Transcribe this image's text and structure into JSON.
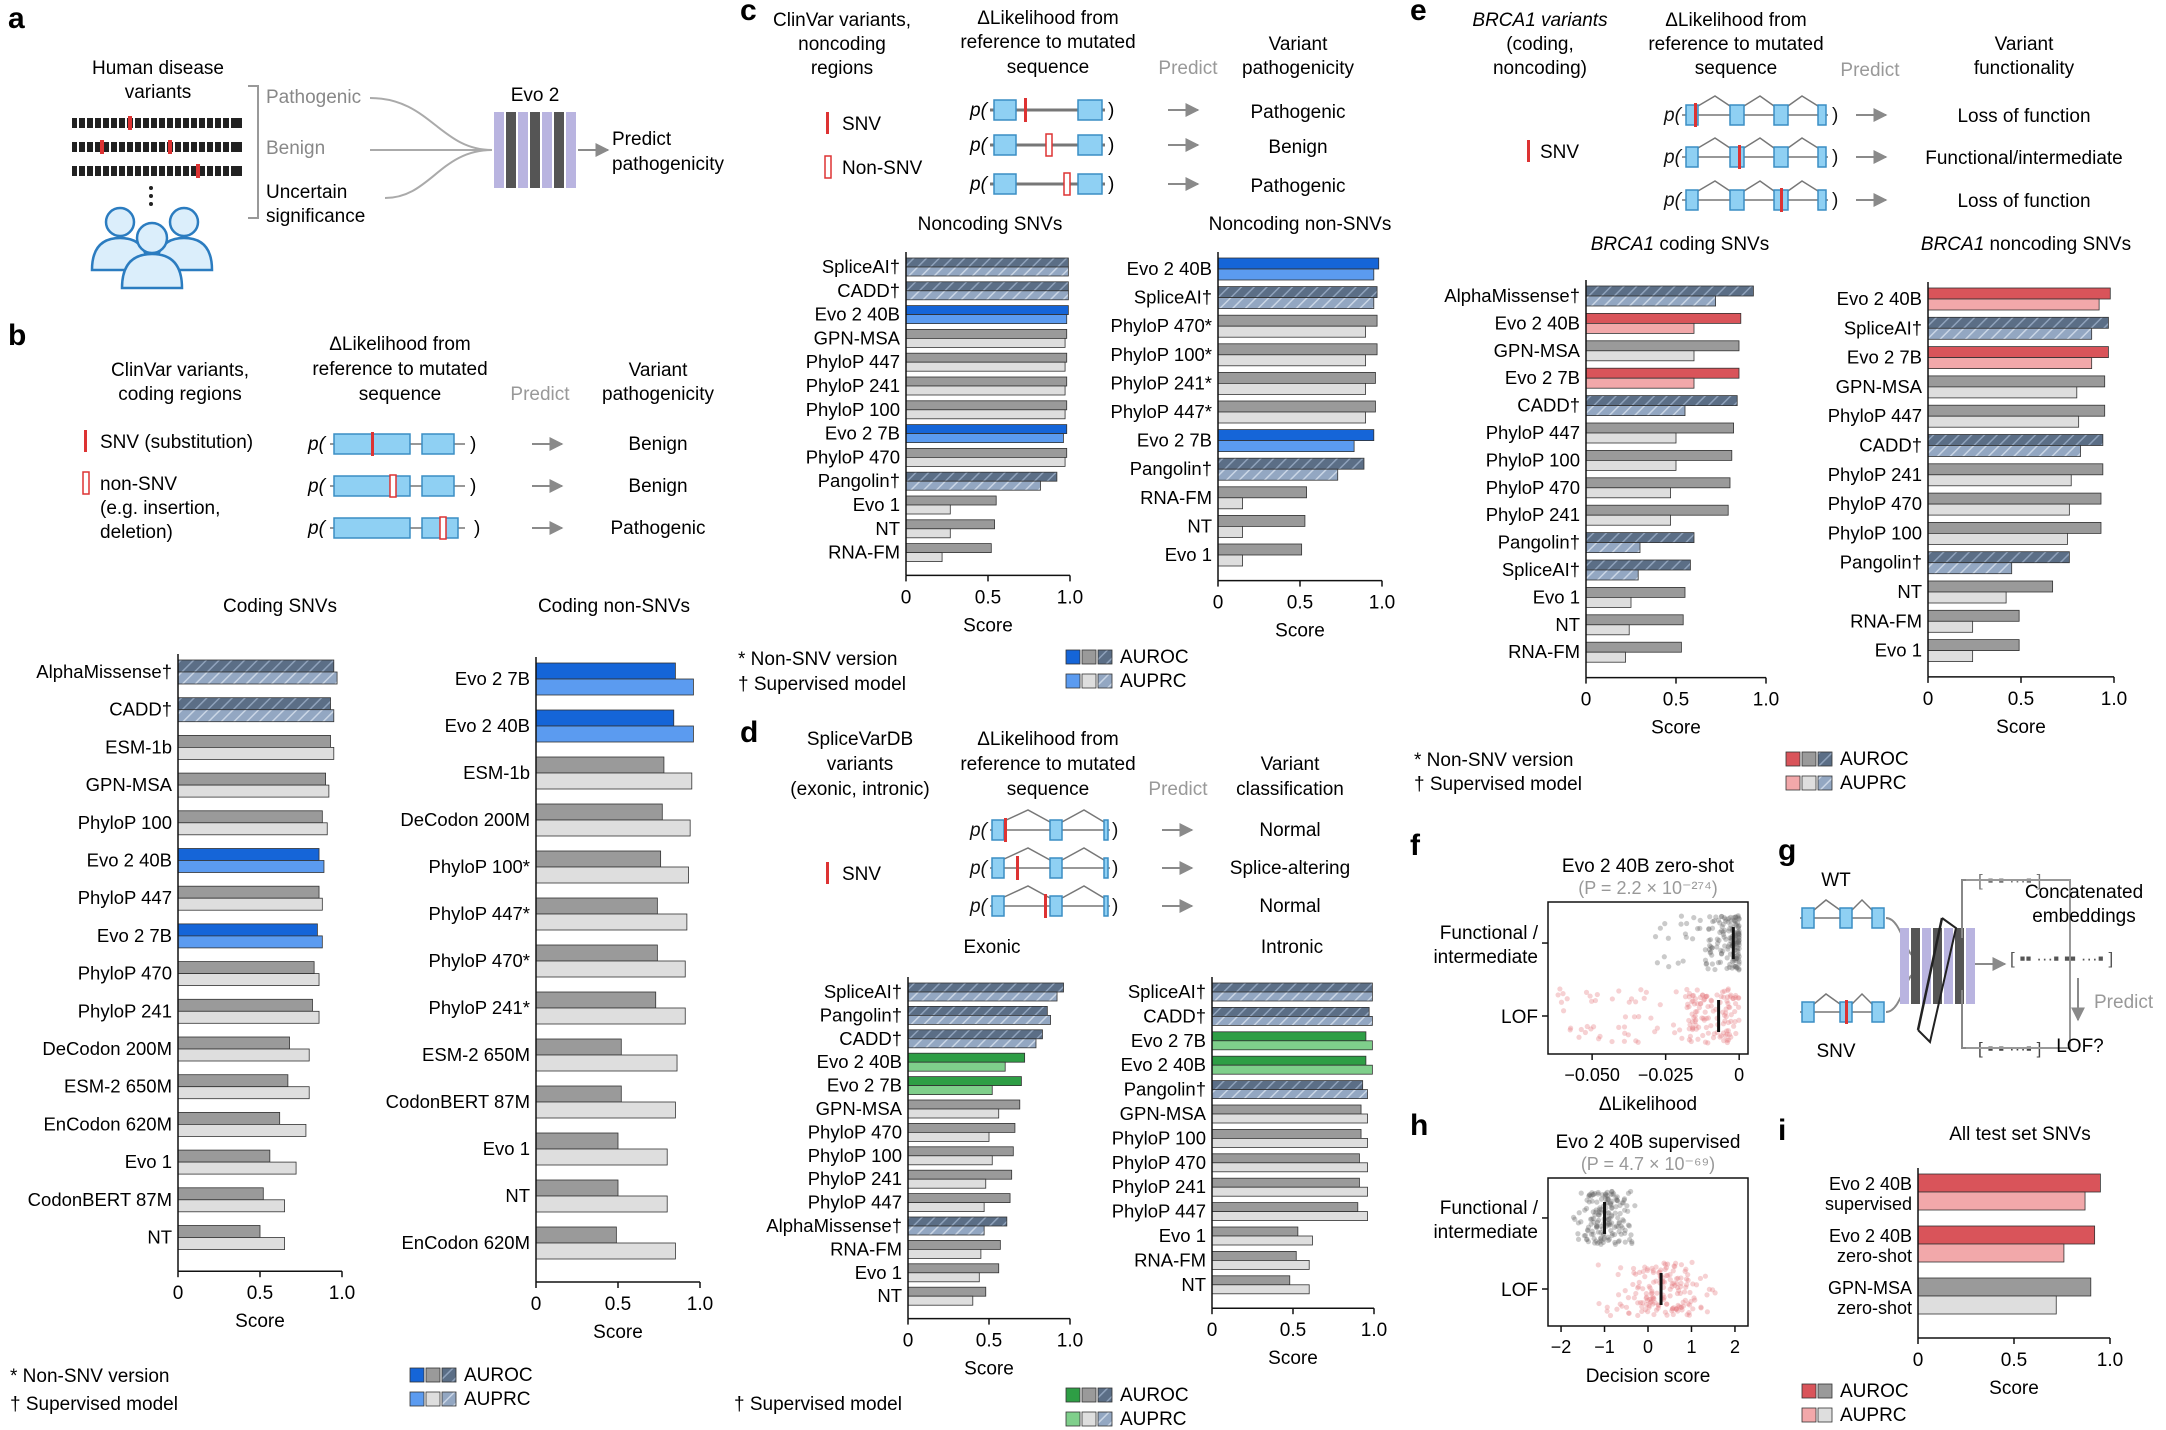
{
  "panel_letters": [
    "a",
    "b",
    "c",
    "d",
    "e",
    "f",
    "g",
    "h",
    "i"
  ],
  "colors": {
    "blue_auroc": "#1565d8",
    "blue_auprc": "#5b9bf0",
    "green_auroc": "#2e9e45",
    "green_auprc": "#7fcf8b",
    "red_auroc": "#d9545a",
    "red_auprc": "#f2a8aa",
    "gray_auroc": "#9a9a9a",
    "gray_auprc": "#dedede",
    "hatch": "#5b6e86",
    "hatch_light": "#93a7c2"
  },
  "panel_a": {
    "title_line1": "Human disease",
    "title_line2": "variants",
    "labels": [
      "Pathogenic",
      "Benign",
      "Uncertain",
      "significance"
    ],
    "model": "Evo 2",
    "predict_line1": "Predict",
    "predict_line2": "pathogenicity"
  },
  "panel_b": {
    "col1_line1": "ClinVar variants,",
    "col1_line2": "coding regions",
    "col2_line1": "ΔLikelihood from",
    "col2_line2": "reference to mutated",
    "col2_line3": "sequence",
    "predict": "Predict",
    "col3_line1": "Variant",
    "col3_line2": "pathogenicity",
    "legend": [
      "SNV (substitution)",
      "non-SNV",
      "(e.g. insertion,",
      "deletion)"
    ],
    "p_label": "p(",
    "p_close": ")",
    "outcomes": [
      "Benign",
      "Benign",
      "Pathogenic"
    ],
    "footnote_star": "* Non-SNV version",
    "footnote_dagger": "† Supervised model",
    "legend_auroc": "AUROC",
    "legend_auprc": "AUPRC"
  },
  "panel_c": {
    "col1_line1": "ClinVar variants,",
    "col1_line2": "noncoding",
    "col1_line3": "regions",
    "col2_line1": "ΔLikelihood from",
    "col2_line2": "reference to mutated",
    "col2_line3": "sequence",
    "predict": "Predict",
    "col3_line1": "Variant",
    "col3_line2": "pathogenicity",
    "legend": [
      "SNV",
      "Non-SNV"
    ],
    "outcomes": [
      "Pathogenic",
      "Benign",
      "Pathogenic"
    ],
    "footnote_star": "* Non-SNV version",
    "footnote_dagger": "† Supervised model",
    "legend_auroc": "AUROC",
    "legend_auprc": "AUPRC"
  },
  "panel_d": {
    "col1_line1": "SpliceVarDB",
    "col1_line2": "variants",
    "col1_line3": "(exonic, intronic)",
    "col2_line1": "ΔLikelihood from",
    "col2_line2": "reference to mutated",
    "col2_line3": "sequence",
    "predict": "Predict",
    "col3_line1": "Variant",
    "col3_line2": "classification",
    "legend": [
      "SNV"
    ],
    "outcomes": [
      "Normal",
      "Splice-altering",
      "Normal"
    ],
    "footnote_dagger": "† Supervised model",
    "legend_auroc": "AUROC",
    "legend_auprc": "AUPRC"
  },
  "panel_e": {
    "col1_line1": "BRCA1 variants",
    "col1_line2": "(coding,",
    "col1_line3": "noncoding)",
    "col2_line1": "ΔLikelihood from",
    "col2_line2": "reference to mutated",
    "col2_line3": "sequence",
    "predict": "Predict",
    "col3_line1": "Variant",
    "col3_line2": "functionality",
    "legend": [
      "SNV"
    ],
    "outcomes": [
      "Loss of function",
      "Functional/intermediate",
      "Loss of function"
    ],
    "footnote_star": "* Non-SNV version",
    "footnote_dagger": "† Supervised model",
    "legend_auroc": "AUROC",
    "legend_auprc": "AUPRC"
  },
  "panel_g": {
    "wt": "WT",
    "snv": "SNV",
    "concat_line1": "Concatenated",
    "concat_line2": "embeddings",
    "predict": "Predict",
    "lof": "LOF?"
  },
  "chart_data": [
    {
      "id": "b1",
      "type": "bar",
      "title": "Coding SNVs",
      "xlabel": "Score",
      "xlim": [
        0,
        1
      ],
      "ticks": [
        "0",
        "0.5",
        "1.0"
      ],
      "categories": [
        "AlphaMissense†",
        "CADD†",
        "ESM-1b",
        "GPN-MSA",
        "PhyloP 100",
        "Evo 2 40B",
        "PhyloP 447",
        "Evo 2 7B",
        "PhyloP 470",
        "PhyloP 241",
        "DeCodon 200M",
        "ESM-2 650M",
        "EnCodon 620M",
        "Evo 1",
        "CodonBERT 87M",
        "NT"
      ],
      "styles": [
        "hatch",
        "hatch",
        "gray",
        "gray",
        "gray",
        "color",
        "gray",
        "color",
        "gray",
        "gray",
        "gray",
        "gray",
        "gray",
        "gray",
        "gray",
        "gray"
      ],
      "series": [
        {
          "name": "AUROC",
          "values": [
            0.95,
            0.93,
            0.93,
            0.9,
            0.88,
            0.86,
            0.86,
            0.85,
            0.83,
            0.82,
            0.68,
            0.67,
            0.62,
            0.56,
            0.52,
            0.5
          ]
        },
        {
          "name": "AUPRC",
          "values": [
            0.97,
            0.95,
            0.95,
            0.92,
            0.91,
            0.89,
            0.88,
            0.88,
            0.86,
            0.86,
            0.8,
            0.8,
            0.78,
            0.72,
            0.65,
            0.65
          ]
        }
      ]
    },
    {
      "id": "b2",
      "type": "bar",
      "title": "Coding non-SNVs",
      "xlabel": "Score",
      "xlim": [
        0,
        1
      ],
      "ticks": [
        "0",
        "0.5",
        "1.0"
      ],
      "categories": [
        "Evo 2 7B",
        "Evo 2 40B",
        "ESM-1b",
        "DeCodon 200M",
        "PhyloP 100*",
        "PhyloP 447*",
        "PhyloP 470*",
        "PhyloP 241*",
        "ESM-2 650M",
        "CodonBERT 87M",
        "Evo 1",
        "NT",
        "EnCodon 620M"
      ],
      "styles": [
        "color",
        "color",
        "gray",
        "gray",
        "gray",
        "gray",
        "gray",
        "gray",
        "gray",
        "gray",
        "gray",
        "gray",
        "gray"
      ],
      "series": [
        {
          "name": "AUROC",
          "values": [
            0.85,
            0.84,
            0.78,
            0.77,
            0.76,
            0.74,
            0.74,
            0.73,
            0.52,
            0.52,
            0.5,
            0.5,
            0.49
          ]
        },
        {
          "name": "AUPRC",
          "values": [
            0.96,
            0.96,
            0.95,
            0.94,
            0.93,
            0.92,
            0.91,
            0.91,
            0.86,
            0.85,
            0.8,
            0.8,
            0.85
          ]
        }
      ]
    },
    {
      "id": "c1",
      "type": "bar",
      "title": "Noncoding SNVs",
      "xlabel": "Score",
      "xlim": [
        0,
        1
      ],
      "ticks": [
        "0",
        "0.5",
        "1.0"
      ],
      "categories": [
        "SpliceAI†",
        "CADD†",
        "Evo 2 40B",
        "GPN-MSA",
        "PhyloP 447",
        "PhyloP 241",
        "PhyloP 100",
        "Evo 2 7B",
        "PhyloP 470",
        "Pangolin†",
        "Evo 1",
        "NT",
        "RNA-FM"
      ],
      "styles": [
        "hatch",
        "hatch",
        "color",
        "gray",
        "gray",
        "gray",
        "gray",
        "color",
        "gray",
        "hatch",
        "gray",
        "gray",
        "gray"
      ],
      "series": [
        {
          "name": "AUROC",
          "values": [
            0.99,
            0.99,
            0.99,
            0.98,
            0.98,
            0.98,
            0.98,
            0.98,
            0.98,
            0.92,
            0.55,
            0.54,
            0.52
          ]
        },
        {
          "name": "AUPRC",
          "values": [
            0.99,
            0.99,
            0.98,
            0.97,
            0.97,
            0.97,
            0.97,
            0.96,
            0.97,
            0.82,
            0.27,
            0.27,
            0.22
          ]
        }
      ]
    },
    {
      "id": "c2",
      "type": "bar",
      "title": "Noncoding non-SNVs",
      "xlabel": "Score",
      "xlim": [
        0,
        1
      ],
      "ticks": [
        "0",
        "0.5",
        "1.0"
      ],
      "categories": [
        "Evo 2 40B",
        "SpliceAI†",
        "PhyloP 470*",
        "PhyloP 100*",
        "PhyloP 241*",
        "PhyloP 447*",
        "Evo 2 7B",
        "Pangolin†",
        "RNA-FM",
        "NT",
        "Evo 1"
      ],
      "styles": [
        "color",
        "hatch",
        "gray",
        "gray",
        "gray",
        "gray",
        "color",
        "hatch",
        "gray",
        "gray",
        "gray"
      ],
      "series": [
        {
          "name": "AUROC",
          "values": [
            0.98,
            0.97,
            0.97,
            0.97,
            0.96,
            0.96,
            0.95,
            0.89,
            0.54,
            0.53,
            0.51
          ]
        },
        {
          "name": "AUPRC",
          "values": [
            0.95,
            0.95,
            0.9,
            0.9,
            0.9,
            0.9,
            0.83,
            0.73,
            0.15,
            0.15,
            0.15
          ]
        }
      ]
    },
    {
      "id": "d1",
      "type": "bar",
      "title": "Exonic",
      "xlabel": "Score",
      "xlim": [
        0,
        1
      ],
      "ticks": [
        "0",
        "0.5",
        "1.0"
      ],
      "categories": [
        "SpliceAI†",
        "Pangolin†",
        "CADD†",
        "Evo 2 40B",
        "Evo 2 7B",
        "GPN-MSA",
        "PhyloP 470",
        "PhyloP 100",
        "PhyloP 241",
        "PhyloP 447",
        "AlphaMissense†",
        "RNA-FM",
        "Evo 1",
        "NT"
      ],
      "styles": [
        "hatch",
        "hatch",
        "hatch",
        "color",
        "color",
        "gray",
        "gray",
        "gray",
        "gray",
        "gray",
        "hatch",
        "gray",
        "gray",
        "gray"
      ],
      "series": [
        {
          "name": "AUROC",
          "values": [
            0.96,
            0.86,
            0.83,
            0.72,
            0.7,
            0.69,
            0.66,
            0.65,
            0.64,
            0.63,
            0.61,
            0.57,
            0.56,
            0.48
          ],
          "visual": [
            0.96,
            0.86,
            0.83,
            0.72,
            0.7,
            0.69,
            0.66,
            0.65,
            0.64,
            0.63,
            0.61,
            0.57,
            0.56,
            0.48
          ]
        },
        {
          "name": "AUPRC",
          "values": [
            0.92,
            0.88,
            0.79,
            0.6,
            0.52,
            0.56,
            0.5,
            0.52,
            0.48,
            0.47,
            0.47,
            0.45,
            0.44,
            0.4
          ]
        }
      ]
    },
    {
      "id": "d2",
      "type": "bar",
      "title": "Intronic",
      "xlabel": "Score",
      "xlim": [
        0,
        1
      ],
      "ticks": [
        "0",
        "0.5",
        "1.0"
      ],
      "categories": [
        "SpliceAI†",
        "CADD†",
        "Evo 2 7B",
        "Evo 2 40B",
        "Pangolin†",
        "GPN-MSA",
        "PhyloP 100",
        "PhyloP 470",
        "PhyloP 241",
        "PhyloP 447",
        "Evo 1",
        "RNA-FM",
        "NT"
      ],
      "styles": [
        "hatch",
        "hatch",
        "color",
        "color",
        "hatch",
        "gray",
        "gray",
        "gray",
        "gray",
        "gray",
        "gray",
        "gray",
        "gray"
      ],
      "series": [
        {
          "name": "AUROC",
          "values": [
            0.99,
            0.97,
            0.95,
            0.95,
            0.93,
            0.92,
            0.92,
            0.91,
            0.91,
            0.9,
            0.53,
            0.52,
            0.48
          ],
          "visual": [
            0.99,
            0.97,
            0.95,
            0.95,
            0.93,
            0.92,
            0.92,
            0.91,
            0.91,
            0.9,
            0.53,
            0.52,
            0.48
          ]
        },
        {
          "name": "AUPRC",
          "values": [
            0.99,
            0.99,
            0.99,
            0.99,
            0.96,
            0.96,
            0.96,
            0.96,
            0.96,
            0.96,
            0.62,
            0.6,
            0.6
          ]
        }
      ]
    },
    {
      "id": "e1",
      "type": "bar",
      "title": "BRCA1 coding SNVs",
      "xlabel": "Score",
      "xlim": [
        0,
        1
      ],
      "ticks": [
        "0",
        "0.5",
        "1.0"
      ],
      "categories": [
        "AlphaMissense†",
        "Evo 2 40B",
        "GPN-MSA",
        "Evo 2 7B",
        "CADD†",
        "PhyloP 447",
        "PhyloP 100",
        "PhyloP 470",
        "PhyloP 241",
        "Pangolin†",
        "SpliceAI†",
        "Evo 1",
        "NT",
        "RNA-FM"
      ],
      "styles": [
        "hatch",
        "color",
        "gray",
        "color",
        "hatch",
        "gray",
        "gray",
        "gray",
        "gray",
        "hatch",
        "hatch",
        "gray",
        "gray",
        "gray"
      ],
      "series": [
        {
          "name": "AUROC",
          "values": [
            0.93,
            0.86,
            0.85,
            0.85,
            0.84,
            0.82,
            0.81,
            0.8,
            0.79,
            0.6,
            0.58,
            0.55,
            0.54,
            0.53
          ]
        },
        {
          "name": "AUPRC",
          "values": [
            0.72,
            0.6,
            0.6,
            0.6,
            0.55,
            0.5,
            0.5,
            0.47,
            0.47,
            0.3,
            0.29,
            0.25,
            0.24,
            0.22
          ]
        }
      ]
    },
    {
      "id": "e2",
      "type": "bar",
      "title": "BRCA1 noncoding SNVs",
      "xlabel": "Score",
      "xlim": [
        0,
        1
      ],
      "ticks": [
        "0",
        "0.5",
        "1.0"
      ],
      "categories": [
        "Evo 2 40B",
        "SpliceAI†",
        "Evo 2 7B",
        "GPN-MSA",
        "PhyloP 447",
        "CADD†",
        "PhyloP 241",
        "PhyloP 470",
        "PhyloP 100",
        "Pangolin†",
        "NT",
        "RNA-FM",
        "Evo 1"
      ],
      "styles": [
        "color",
        "hatch",
        "color",
        "gray",
        "gray",
        "hatch",
        "gray",
        "gray",
        "gray",
        "hatch",
        "gray",
        "gray",
        "gray"
      ],
      "series": [
        {
          "name": "AUROC",
          "values": [
            0.98,
            0.97,
            0.97,
            0.95,
            0.95,
            0.94,
            0.94,
            0.93,
            0.93,
            0.76,
            0.67,
            0.49,
            0.49
          ]
        },
        {
          "name": "AUPRC",
          "values": [
            0.92,
            0.88,
            0.88,
            0.8,
            0.81,
            0.82,
            0.77,
            0.76,
            0.75,
            0.45,
            0.42,
            0.24,
            0.24
          ]
        }
      ]
    },
    {
      "id": "f",
      "type": "scatter",
      "title": "Evo 2 40B zero-shot",
      "subtitle": "(P = 2.2 × 10⁻²⁷⁴)",
      "xlabel": "ΔLikelihood",
      "xlim": [
        -0.065,
        0.003
      ],
      "ticks": [
        "−0.050",
        "−0.025",
        "0"
      ],
      "tick_values": [
        -0.05,
        -0.025,
        0
      ],
      "groups": [
        {
          "name": "Functional / intermediate",
          "median": -0.002
        },
        {
          "name": "LOF",
          "median": -0.007
        }
      ]
    },
    {
      "id": "h",
      "type": "scatter",
      "title": "Evo 2 40B supervised",
      "subtitle": "(P = 4.7 × 10⁻⁶⁹)",
      "xlabel": "Decision score",
      "xlim": [
        -2.3,
        2.3
      ],
      "ticks": [
        "−2",
        "−1",
        "0",
        "1",
        "2"
      ],
      "tick_values": [
        -2,
        -1,
        0,
        1,
        2
      ],
      "groups": [
        {
          "name": "Functional / intermediate",
          "median": -1.0
        },
        {
          "name": "LOF",
          "median": 0.3
        }
      ]
    },
    {
      "id": "i",
      "type": "bar",
      "title": "All test set SNVs",
      "xlabel": "Score",
      "xlim": [
        0,
        1
      ],
      "ticks": [
        "0",
        "0.5",
        "1.0"
      ],
      "categories": [
        "Evo 2 40B supervised",
        "Evo 2 40B zero-shot",
        "GPN-MSA zero-shot"
      ],
      "category_lines": [
        [
          "Evo 2 40B",
          "supervised"
        ],
        [
          "Evo 2 40B",
          "zero-shot"
        ],
        [
          "GPN-MSA",
          "zero-shot"
        ]
      ],
      "styles": [
        "color",
        "color",
        "gray"
      ],
      "series": [
        {
          "name": "AUROC",
          "values": [
            0.95,
            0.92,
            0.9
          ]
        },
        {
          "name": "AUPRC",
          "values": [
            0.87,
            0.76,
            0.72
          ]
        }
      ]
    }
  ]
}
